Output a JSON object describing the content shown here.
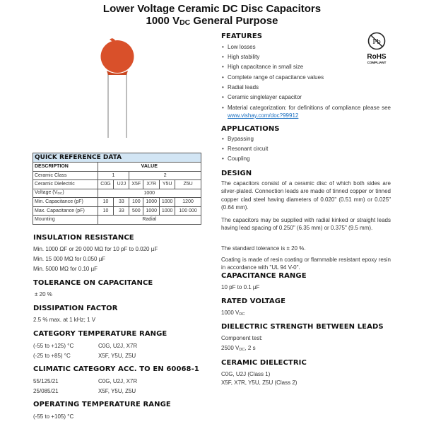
{
  "title": {
    "line1": "Lower Voltage Ceramic DC Disc Capacitors",
    "line2_pre": "1000 V",
    "line2_sub": "DC",
    "line2_post": " General Purpose"
  },
  "rohs": {
    "symbol": "Pb",
    "label": "RoHS",
    "sub": "COMPLIANT"
  },
  "features": {
    "heading": "FEATURES",
    "items": [
      "Low losses",
      "High stability",
      "High capacitance in small size",
      "Complete range of capacitance values",
      "Radial leads",
      "Ceramic singlelayer capacitor"
    ],
    "last_text": "Material categorization: for definitions of compliance please see ",
    "link": "www.vishay.com/doc?99912"
  },
  "applications": {
    "heading": "APPLICATIONS",
    "items": [
      "Bypassing",
      "Resonant circuit",
      "Coupling"
    ]
  },
  "design": {
    "heading": "DESIGN",
    "paragraphs": [
      "The capacitors consist of a ceramic disc of which both sides are silver-plated. Connection leads are made of tinned copper or tinned copper clad steel having diameters of 0.020\" (0.51 mm) or 0.025\" (0.64 mm).",
      "The capacitors may be supplied with radial kinked or straight leads having lead spacing of 0.250\" (6.35 mm) or 0.375\" (9.5 mm).",
      "The standard tolerance is ± 20 %.",
      "Coating is made of resin coating or flammable resistant epoxy resin in accordance with \"UL 94 V-0\"."
    ]
  },
  "capacitance_range": {
    "heading": "CAPACITANCE RANGE",
    "value": "10 pF to 0.1 µF"
  },
  "rated_voltage": {
    "heading": "RATED VOLTAGE",
    "value": "1000 V",
    "sub": "DC"
  },
  "dielectric_strength": {
    "heading": "DIELECTRIC STRENGTH BETWEEN LEADS",
    "line1": "Component test:",
    "line2_pre": "2500 V",
    "line2_sub": "DC",
    "line2_post": ", 2 s"
  },
  "ceramic_dielectric": {
    "heading": "CERAMIC DIELECTRIC",
    "line1": "C0G, U2J (Class 1)",
    "line2": "X5F, X7R, Y5U, Z5U (Class 2)"
  },
  "quick_reference": {
    "title": "QUICK REFERENCE DATA",
    "col_desc": "DESCRIPTION",
    "col_value": "VALUE",
    "class_label": "Ceramic Class",
    "class1": "1",
    "class2": "2",
    "dielectric_label": "Ceramic Dielectric",
    "dielectrics": [
      "C0G",
      "U2J",
      "X5F",
      "X7R",
      "Y5U",
      "Z5U"
    ],
    "voltage_label": "Voltage (V",
    "voltage_sub": "DC",
    "voltage_close": ")",
    "voltage": "1000",
    "min_label": "Min. Capacitance (pF)",
    "min": [
      "10",
      "33",
      "100",
      "1000",
      "1000",
      "1200"
    ],
    "max_label": "Max. Capacitance (pF)",
    "max": [
      "10",
      "33",
      "500",
      "1000",
      "1000",
      "100 000"
    ],
    "mounting_label": "Mounting",
    "mounting": "Radial"
  },
  "insulation": {
    "heading": "INSULATION RESISTANCE",
    "lines": [
      "Min. 1000 ΩF or 20 000 MΩ for 10 pF to 0.020 µF",
      "Min. 15 000 MΩ for 0.050 µF",
      "Min. 5000 MΩ for 0.10 µF"
    ]
  },
  "tolerance": {
    "heading": "TOLERANCE ON CAPACITANCE",
    "value": "± 20 %"
  },
  "dissipation": {
    "heading": "DISSIPATION FACTOR",
    "value": "2.5 % max. at 1 kHz; 1 V"
  },
  "category_temp": {
    "heading": "CATEGORY TEMPERATURE RANGE",
    "rows": [
      {
        "range": "(-55 to +125) °C",
        "types": "C0G, U2J, X7R"
      },
      {
        "range": "(-25 to +85) °C",
        "types": "X5F, Y5U, Z5U"
      }
    ]
  },
  "climatic": {
    "heading": "CLIMATIC CATEGORY ACC. TO EN 60068-1",
    "rows": [
      {
        "range": "55/125/21",
        "types": "C0G, U2J, X7R"
      },
      {
        "range": "25/085/21",
        "types": "X5F, Y5U, Z5U"
      }
    ]
  },
  "operating_temp": {
    "heading": "OPERATING TEMPERATURE RANGE",
    "value": "(-55 to +105) °C"
  },
  "colors": {
    "capacitor": "#d9502a",
    "table_header": "#d2e5f4",
    "link": "#1a6fc0"
  }
}
